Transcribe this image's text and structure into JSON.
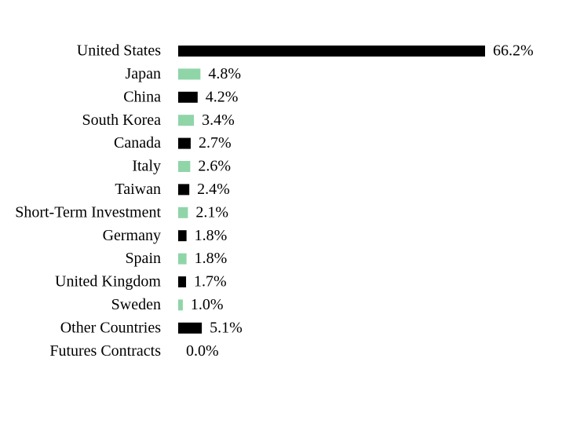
{
  "chart_data": {
    "type": "bar",
    "orientation": "horizontal",
    "categories": [
      "United States",
      "Japan",
      "China",
      "South Korea",
      "Canada",
      "Italy",
      "Taiwan",
      "Short-Term Investment",
      "Germany",
      "Spain",
      "United Kingdom",
      "Sweden",
      "Other Countries",
      "Futures Contracts"
    ],
    "values": [
      66.2,
      4.8,
      4.2,
      3.4,
      2.7,
      2.6,
      2.4,
      2.1,
      1.8,
      1.8,
      1.7,
      1.0,
      5.1,
      0.0
    ],
    "value_labels": [
      "66.2%",
      "4.8%",
      "4.2%",
      "3.4%",
      "2.7%",
      "2.6%",
      "2.4%",
      "2.1%",
      "1.8%",
      "1.8%",
      "1.7%",
      "1.0%",
      "5.1%",
      "0.0%"
    ],
    "colors": [
      "#000000",
      "#8fd5a8",
      "#000000",
      "#8fd5a8",
      "#000000",
      "#8fd5a8",
      "#000000",
      "#8fd5a8",
      "#000000",
      "#8fd5a8",
      "#000000",
      "#8fd5a8",
      "#000000",
      "#8fd5a8"
    ]
  }
}
